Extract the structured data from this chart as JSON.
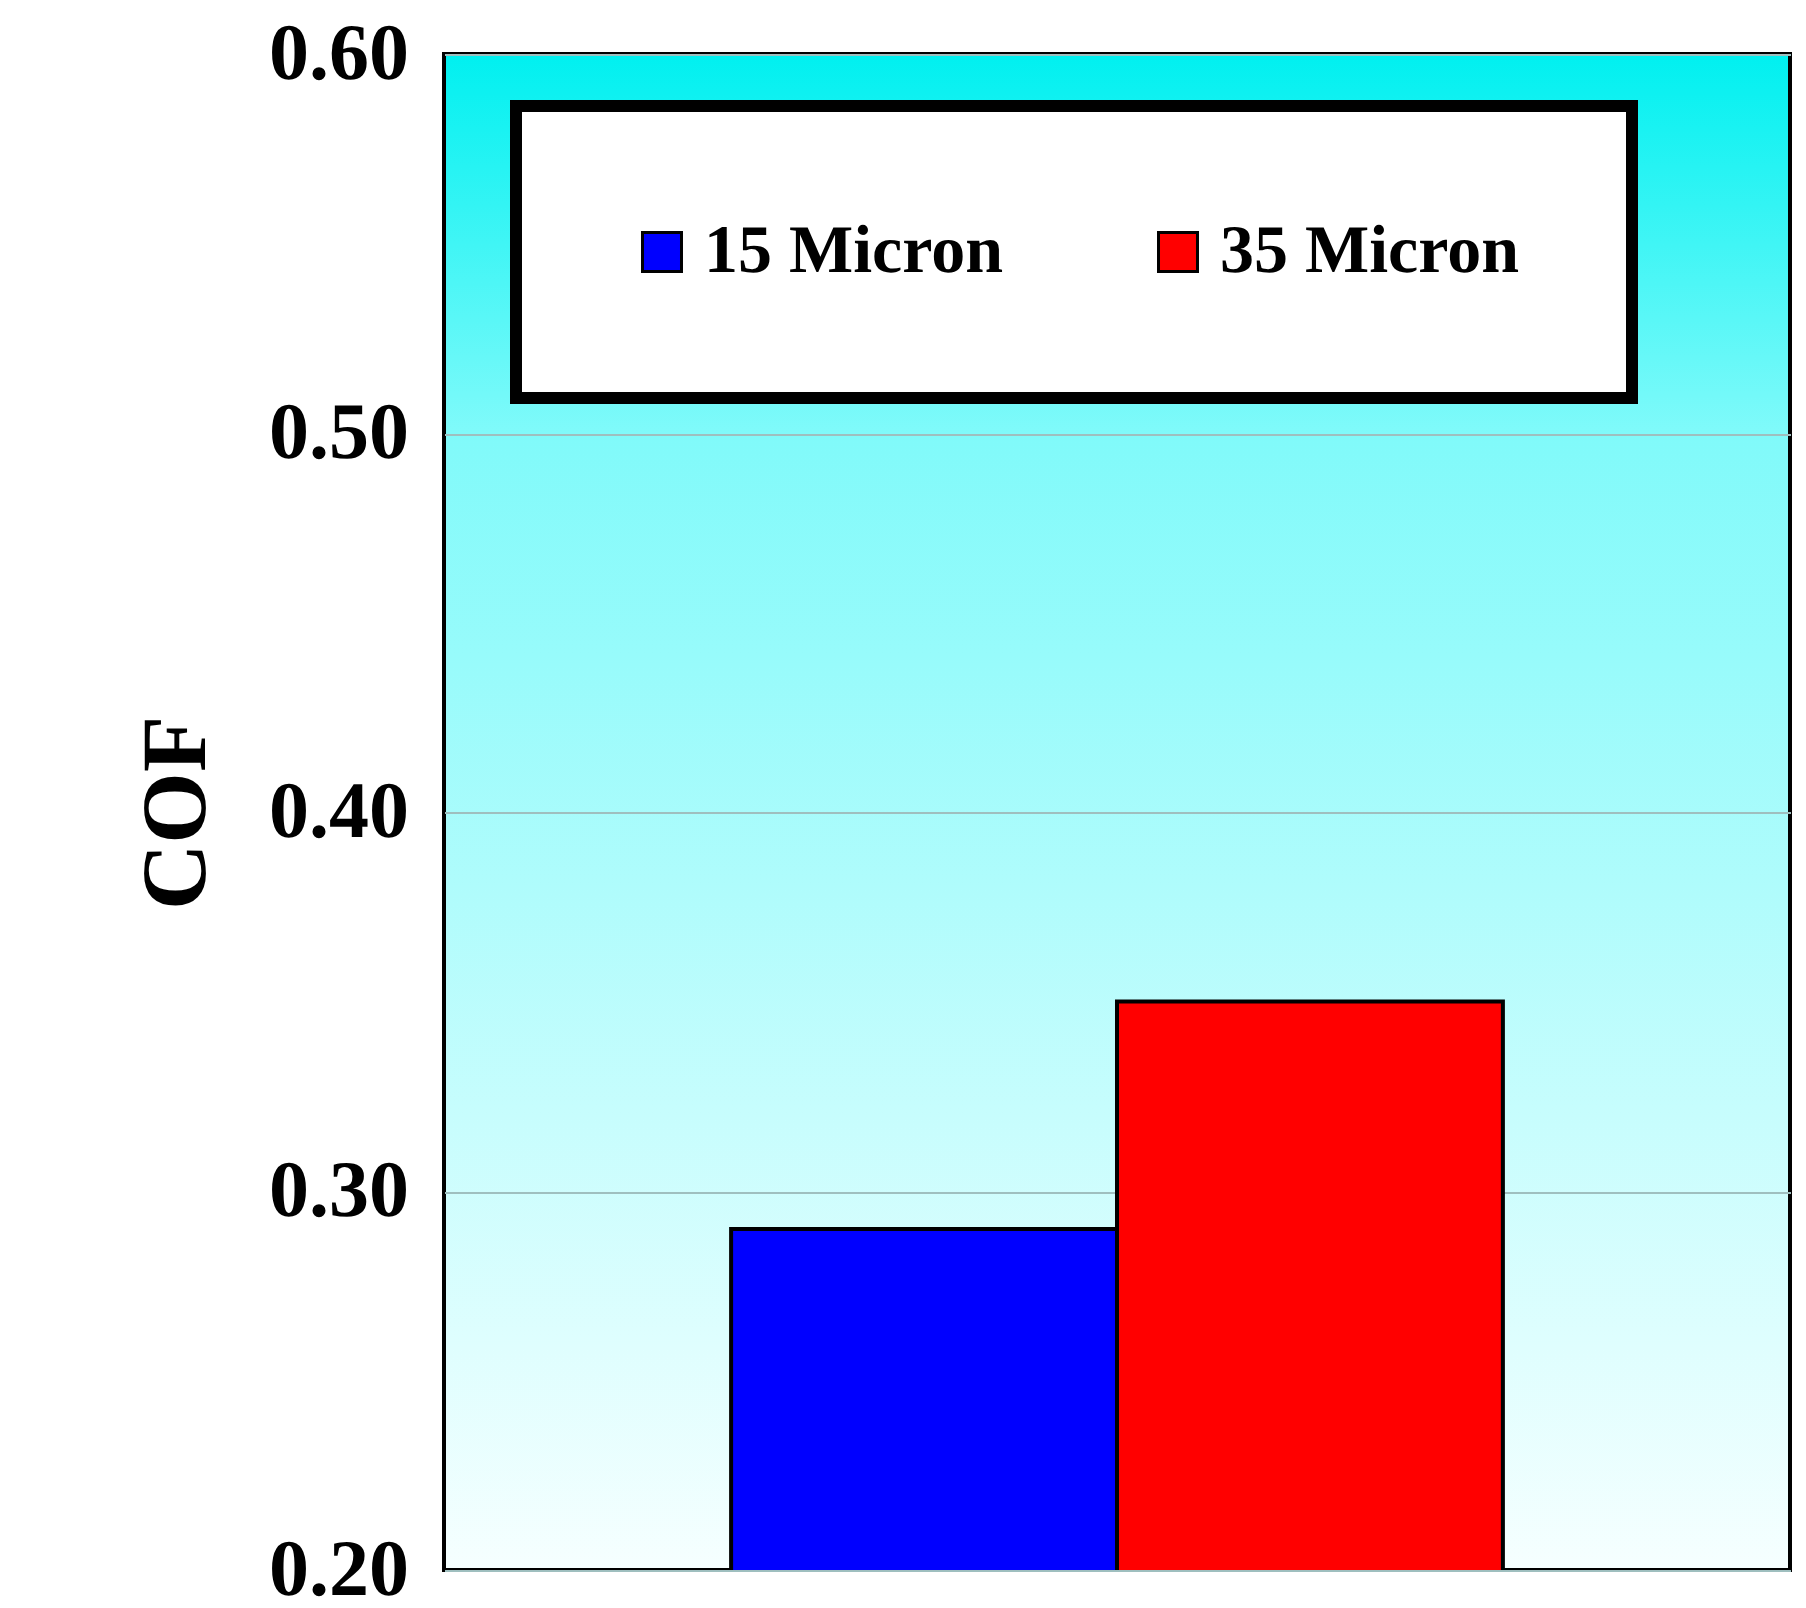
{
  "chart_data": {
    "type": "bar",
    "ylabel": "COF",
    "categories": [
      null
    ],
    "series": [
      {
        "name": "15 Micron",
        "color": "#0000ff",
        "values": [
          0.29
        ]
      },
      {
        "name": "35 Micron",
        "color": "#ff0000",
        "values": [
          0.35
        ]
      }
    ],
    "ylim": [
      0.2,
      0.6
    ],
    "yticks": [
      {
        "value": 0.2,
        "label": "0.20"
      },
      {
        "value": 0.3,
        "label": "0.30"
      },
      {
        "value": 0.4,
        "label": "0.40"
      },
      {
        "value": 0.5,
        "label": "0.50"
      },
      {
        "value": 0.6,
        "label": "0.60"
      }
    ],
    "grid": "y",
    "legend": "top"
  }
}
